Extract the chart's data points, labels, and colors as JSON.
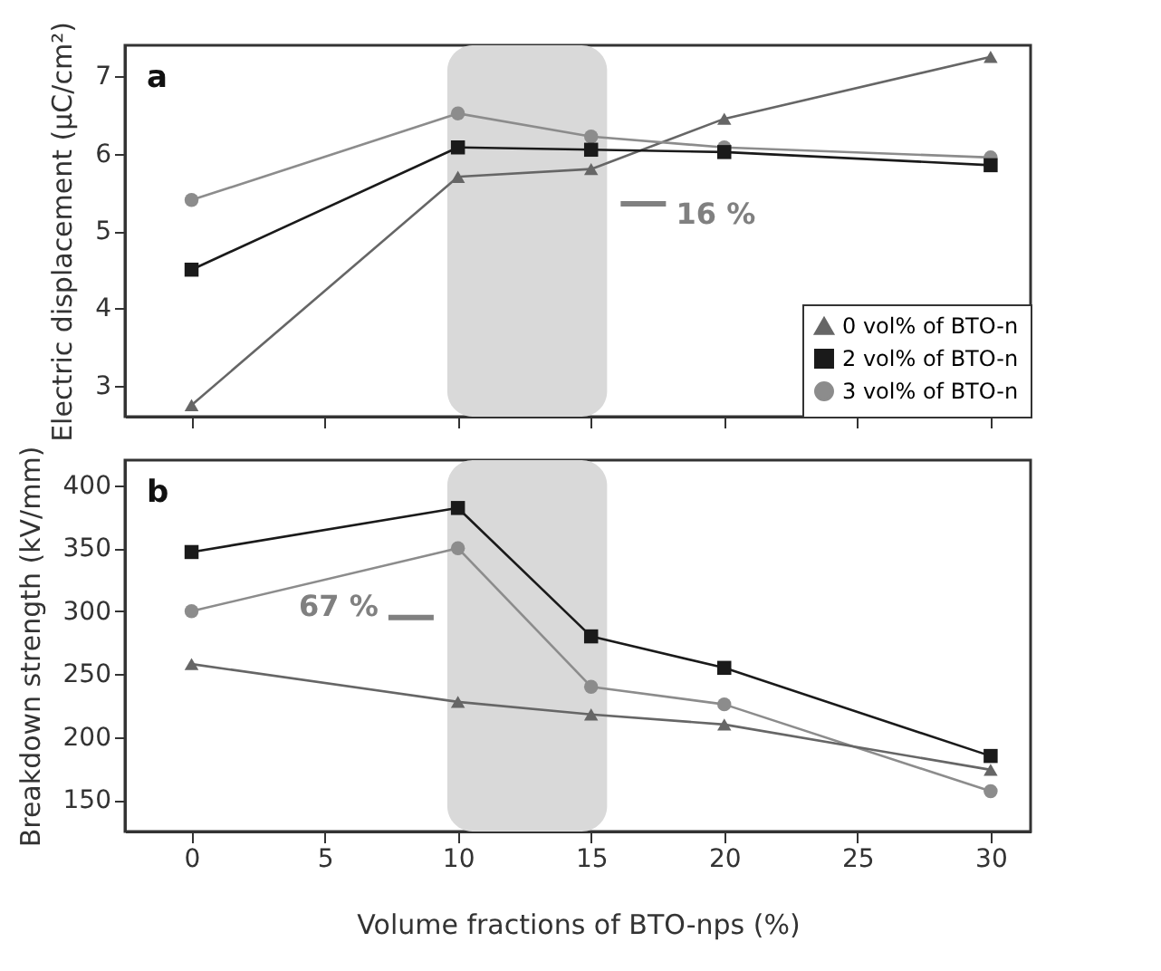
{
  "chart_data": [
    {
      "type": "line",
      "ylabel": "Electric displacement (μC/cm²)",
      "x": [
        0,
        10,
        15,
        20,
        30
      ],
      "xlim": [
        -2.5,
        31.5
      ],
      "xticks": [
        0,
        5,
        10,
        15,
        20,
        25,
        30
      ],
      "ylim": [
        2.6,
        7.4
      ],
      "yticks": [
        3,
        4,
        5,
        6,
        7
      ],
      "tick_labels": "y",
      "grid": false,
      "legend": "bottom right",
      "line_style": "solid",
      "series": [
        {
          "name": "0 vol% of BTO-n",
          "color": "#666666",
          "marker": "triangle",
          "values": [
            2.75,
            5.7,
            5.8,
            6.45,
            7.25
          ]
        },
        {
          "name": "2 vol% of BTO-n",
          "color": "#1a1a1a",
          "marker": "square",
          "values": [
            4.5,
            6.08,
            6.05,
            6.02,
            5.85
          ]
        },
        {
          "name": "3 vol% of BTO-n",
          "color": "#8c8c8c",
          "marker": "circle",
          "values": [
            5.4,
            6.52,
            6.22,
            6.08,
            5.95
          ]
        }
      ],
      "bands": [
        {
          "axis": "x",
          "from": 9.6,
          "to": 15.6,
          "color": "#d9d9d9"
        }
      ],
      "annotations": [
        "a",
        {
          "text": "16 %",
          "x": 15.6,
          "y": 5.35
        }
      ]
    },
    {
      "type": "line",
      "ylabel": "Breakdown strength (kV/mm)",
      "xlabel": "Volume fractions of BTO-nps (%)",
      "x": [
        0,
        10,
        15,
        20,
        30
      ],
      "xlim": [
        -2.5,
        31.5
      ],
      "xticks": [
        0,
        5,
        10,
        15,
        20,
        25,
        30
      ],
      "ylim": [
        125,
        420
      ],
      "yticks": [
        150,
        200,
        250,
        300,
        350,
        400
      ],
      "grid": false,
      "legend": false,
      "line_style": "solid",
      "series": [
        {
          "color": "#1a1a1a",
          "marker": "square",
          "values": [
            347,
            382,
            280,
            255,
            185
          ]
        },
        {
          "color": "#8c8c8c",
          "marker": "circle",
          "values": [
            300,
            350,
            240,
            226,
            157
          ]
        },
        {
          "color": "#666666",
          "marker": "triangle",
          "values": [
            258,
            228,
            218,
            210,
            174
          ]
        }
      ],
      "bands": [
        {
          "axis": "x",
          "from": 9.6,
          "to": 15.6,
          "color": "#d9d9d9"
        }
      ],
      "annotations": [
        "b",
        {
          "text": "67 %",
          "x": 9.6,
          "y": 295
        }
      ]
    }
  ]
}
